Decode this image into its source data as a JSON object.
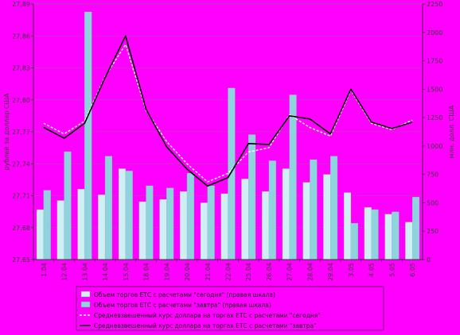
{
  "chart_data": {
    "type": "bar-line",
    "categories": [
      "1.04",
      "12.04",
      "13.04",
      "14.04",
      "15.04",
      "18.04",
      "19.04",
      "20.04",
      "21.04",
      "22.04",
      "25.04",
      "26.04",
      "27.04",
      "28.04",
      "29.04",
      "3.05",
      "4.05",
      "5.05",
      "6.05"
    ],
    "y_left": {
      "label": "рублей за доллар США",
      "ylim": [
        27.65,
        27.89
      ],
      "ticks": [
        "27,65",
        "27,68",
        "27,71",
        "27,74",
        "27,77",
        "27,80",
        "27,83",
        "27,86",
        "27,89"
      ]
    },
    "y_right": {
      "label": "млн. долл. США",
      "ylim": [
        0,
        2250
      ],
      "ticks": [
        "0",
        "250",
        "500",
        "750",
        "1000",
        "1250",
        "1500",
        "1750",
        "2000",
        "2250"
      ]
    },
    "series": [
      {
        "name": "Объем торгов ЕТС с расчетами \"сегодня\" (правая шкала)",
        "type": "bar",
        "axis": "right",
        "color": "#cfeff4",
        "values": [
          440,
          520,
          620,
          570,
          800,
          510,
          530,
          600,
          500,
          580,
          710,
          600,
          800,
          680,
          750,
          590,
          460,
          400,
          330
        ]
      },
      {
        "name": "Объем торгов ЕТС с расчетами \"завтра\" (правая шкала)",
        "type": "bar",
        "axis": "right",
        "color": "#8fd3de",
        "values": [
          610,
          950,
          2180,
          910,
          780,
          650,
          630,
          760,
          650,
          1510,
          1100,
          870,
          1450,
          880,
          910,
          320,
          440,
          420,
          550
        ]
      },
      {
        "name": "Средневзвешенный курс доллара на торгах ЕТС с расчетами \"сегодня\"",
        "type": "line",
        "axis": "left",
        "color": "#ffffff",
        "dashed": true,
        "values": [
          27.778,
          27.768,
          27.78,
          27.822,
          27.852,
          27.79,
          27.761,
          27.74,
          27.723,
          27.731,
          27.751,
          27.755,
          27.786,
          27.774,
          27.766,
          27.809,
          27.778,
          27.772,
          27.781
        ]
      },
      {
        "name": "Средневзвешенный курс доллара на торгах ЕТС с расчетами \"завтра\"",
        "type": "line",
        "axis": "left",
        "color": "#000000",
        "dashed": false,
        "values": [
          27.774,
          27.764,
          27.778,
          27.821,
          27.86,
          27.791,
          27.756,
          27.735,
          27.719,
          27.727,
          27.759,
          27.758,
          27.785,
          27.782,
          27.768,
          27.81,
          27.779,
          27.773,
          27.779
        ]
      }
    ],
    "grid": true,
    "legend_position": "bottom"
  }
}
